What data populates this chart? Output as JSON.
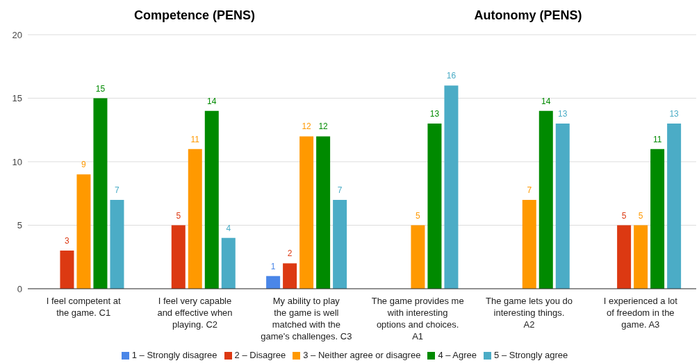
{
  "chart_data": {
    "type": "bar",
    "annotations": [
      "Competence (PENS)",
      "Autonomy (PENS)"
    ],
    "categories": [
      "I feel competent at the game. C1",
      "I feel very capable and effective when playing. C2",
      "My ability to play the game is well matched with the game's challenges. C3",
      "The game provides me with interesting options and choices. A1",
      "The game lets you do interesting things. A2",
      "I experienced a lot of freedom in the game. A3"
    ],
    "series": [
      {
        "name": "1 – Strongly disagree",
        "color": "#4a86e8",
        "values": [
          null,
          null,
          1,
          null,
          null,
          null
        ]
      },
      {
        "name": "2 – Disagree",
        "color": "#dc3912",
        "values": [
          3,
          5,
          2,
          null,
          null,
          5
        ]
      },
      {
        "name": "3 – Neither agree or disagree",
        "color": "#ff9900",
        "values": [
          9,
          11,
          12,
          5,
          7,
          5
        ]
      },
      {
        "name": "4 – Agree",
        "color": "#008a00",
        "values": [
          15,
          14,
          12,
          13,
          14,
          11
        ]
      },
      {
        "name": "5 – Strongly agree",
        "color": "#4bacc6",
        "values": [
          7,
          4,
          7,
          16,
          13,
          13
        ]
      }
    ],
    "ylim": [
      0,
      20
    ],
    "yticks": [
      0,
      5,
      10,
      15,
      20
    ],
    "grid": "y",
    "legend": "bottom",
    "data_labels": true
  }
}
